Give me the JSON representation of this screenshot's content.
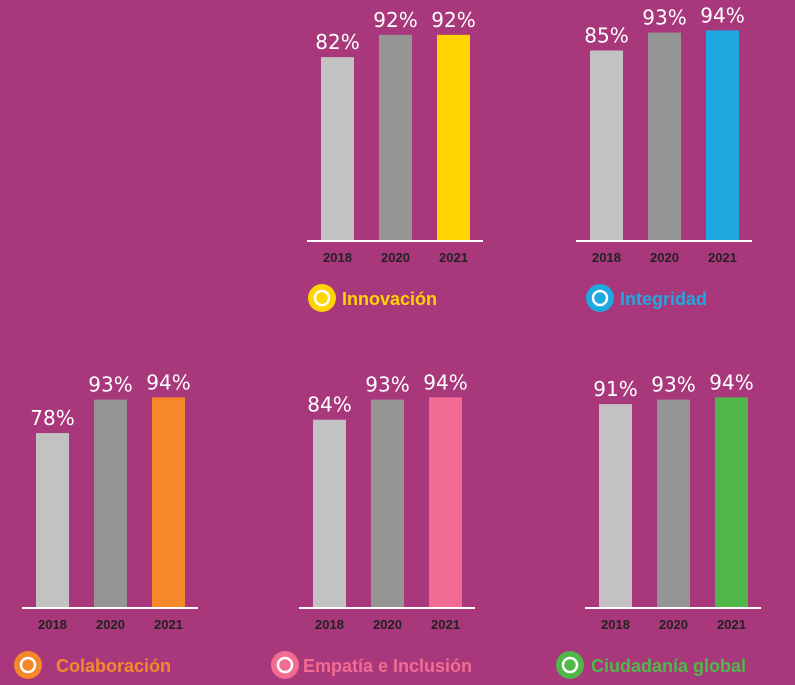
{
  "chart_data": [
    {
      "type": "bar",
      "title": "Innovación",
      "title_color": "#ffd400",
      "categories": [
        "2018",
        "2020",
        "2021"
      ],
      "values": [
        82,
        92,
        92
      ],
      "value_labels": [
        "82%",
        "92%",
        "92%"
      ],
      "colors": [
        "#c2c2c2",
        "#959595",
        "#ffd400"
      ]
    },
    {
      "type": "bar",
      "title": "Integridad",
      "title_color": "#1fa8e0",
      "categories": [
        "2018",
        "2020",
        "2021"
      ],
      "values": [
        85,
        93,
        94
      ],
      "value_labels": [
        "85%",
        "93%",
        "94%"
      ],
      "colors": [
        "#c2c2c2",
        "#959595",
        "#1fa8e0"
      ]
    },
    {
      "type": "bar",
      "title": "Colaboración",
      "title_color": "#f5882a",
      "categories": [
        "2018",
        "2020",
        "2021"
      ],
      "values": [
        78,
        93,
        94
      ],
      "value_labels": [
        "78%",
        "93%",
        "94%"
      ],
      "colors": [
        "#c2c2c2",
        "#959595",
        "#f5882a"
      ]
    },
    {
      "type": "bar",
      "title": "Empatía e Inclusión",
      "title_color": "#f26b93",
      "categories": [
        "2018",
        "2020",
        "2021"
      ],
      "values": [
        84,
        93,
        94
      ],
      "value_labels": [
        "84%",
        "93%",
        "94%"
      ],
      "colors": [
        "#c2c2c2",
        "#959595",
        "#f26b93"
      ]
    },
    {
      "type": "bar",
      "title": "Ciudadanía global",
      "title_color": "#4fb848",
      "categories": [
        "2018",
        "2020",
        "2021"
      ],
      "values": [
        91,
        93,
        94
      ],
      "value_labels": [
        "91%",
        "93%",
        "94%"
      ],
      "colors": [
        "#c2c2c2",
        "#959595",
        "#4fb848"
      ]
    }
  ]
}
